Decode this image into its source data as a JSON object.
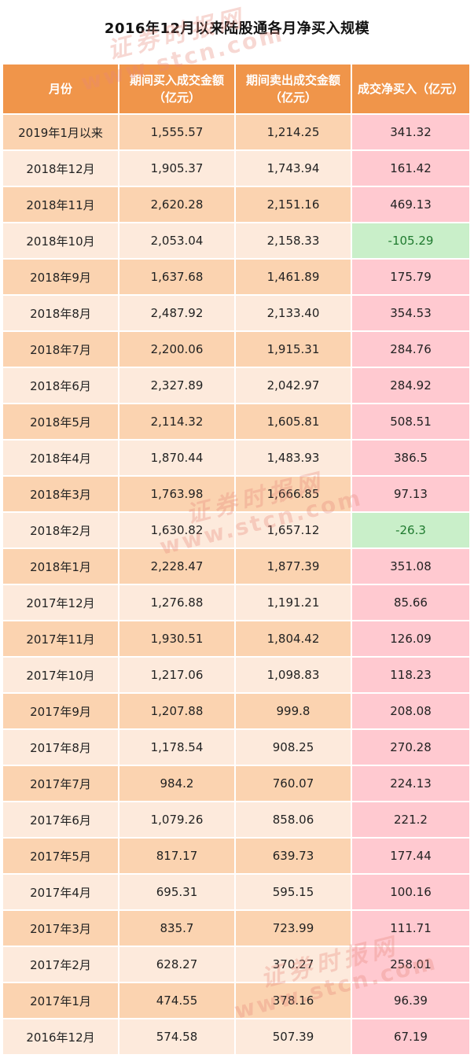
{
  "title": "2016年12月以来陆股通各月净买入规模",
  "watermark": {
    "cn": "证券时报网",
    "en": "www.stcn.com",
    "color": "#e8887a"
  },
  "colors": {
    "header": "#f0954a",
    "row_odd": "#fbd3b0",
    "row_even": "#fdeadc",
    "positive_bg": "#ffc9d0",
    "positive_text": "#c0392b",
    "negative_bg": "#c9efc9",
    "negative_text": "#1f7a2f"
  },
  "table": {
    "headers": [
      "月份",
      "期间买入成交金额（亿元）",
      "期间卖出成交金额（亿元）",
      "成交净买入（亿元）"
    ],
    "rows": [
      {
        "month": "2019年1月以来",
        "buy": "1,555.57",
        "sell": "1,214.25",
        "net": "341.32"
      },
      {
        "month": "2018年12月",
        "buy": "1,905.37",
        "sell": "1,743.94",
        "net": "161.42"
      },
      {
        "month": "2018年11月",
        "buy": "2,620.28",
        "sell": "2,151.16",
        "net": "469.13"
      },
      {
        "month": "2018年10月",
        "buy": "2,053.04",
        "sell": "2,158.33",
        "net": "-105.29"
      },
      {
        "month": "2018年9月",
        "buy": "1,637.68",
        "sell": "1,461.89",
        "net": "175.79"
      },
      {
        "month": "2018年8月",
        "buy": "2,487.92",
        "sell": "2,133.40",
        "net": "354.53"
      },
      {
        "month": "2018年7月",
        "buy": "2,200.06",
        "sell": "1,915.31",
        "net": "284.76"
      },
      {
        "month": "2018年6月",
        "buy": "2,327.89",
        "sell": "2,042.97",
        "net": "284.92"
      },
      {
        "month": "2018年5月",
        "buy": "2,114.32",
        "sell": "1,605.81",
        "net": "508.51"
      },
      {
        "month": "2018年4月",
        "buy": "1,870.44",
        "sell": "1,483.93",
        "net": "386.5"
      },
      {
        "month": "2018年3月",
        "buy": "1,763.98",
        "sell": "1,666.85",
        "net": "97.13"
      },
      {
        "month": "2018年2月",
        "buy": "1,630.82",
        "sell": "1,657.12",
        "net": "-26.3"
      },
      {
        "month": "2018年1月",
        "buy": "2,228.47",
        "sell": "1,877.39",
        "net": "351.08"
      },
      {
        "month": "2017年12月",
        "buy": "1,276.88",
        "sell": "1,191.21",
        "net": "85.66"
      },
      {
        "month": "2017年11月",
        "buy": "1,930.51",
        "sell": "1,804.42",
        "net": "126.09"
      },
      {
        "month": "2017年10月",
        "buy": "1,217.06",
        "sell": "1,098.83",
        "net": "118.23"
      },
      {
        "month": "2017年9月",
        "buy": "1,207.88",
        "sell": "999.8",
        "net": "208.08"
      },
      {
        "month": "2017年8月",
        "buy": "1,178.54",
        "sell": "908.25",
        "net": "270.28"
      },
      {
        "month": "2017年7月",
        "buy": "984.2",
        "sell": "760.07",
        "net": "224.13"
      },
      {
        "month": "2017年6月",
        "buy": "1,079.26",
        "sell": "858.06",
        "net": "221.2"
      },
      {
        "month": "2017年5月",
        "buy": "817.17",
        "sell": "639.73",
        "net": "177.44"
      },
      {
        "month": "2017年4月",
        "buy": "695.31",
        "sell": "595.15",
        "net": "100.16"
      },
      {
        "month": "2017年3月",
        "buy": "835.7",
        "sell": "723.99",
        "net": "111.71"
      },
      {
        "month": "2017年2月",
        "buy": "628.27",
        "sell": "370.27",
        "net": "258.01"
      },
      {
        "month": "2017年1月",
        "buy": "474.55",
        "sell": "378.16",
        "net": "96.39"
      },
      {
        "month": "2016年12月",
        "buy": "574.58",
        "sell": "507.39",
        "net": "67.19"
      }
    ]
  }
}
